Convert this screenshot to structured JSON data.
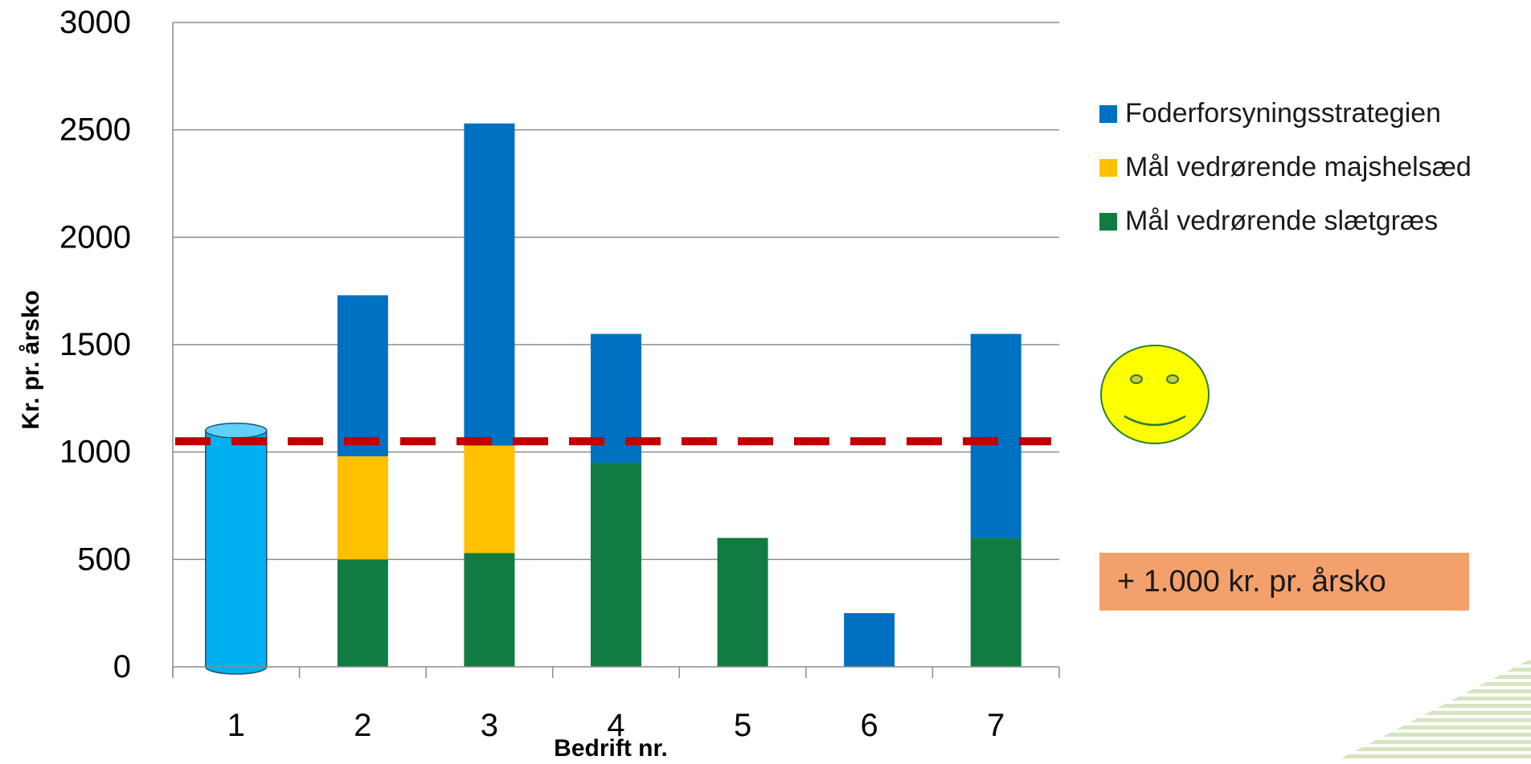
{
  "chart_data": {
    "type": "bar",
    "stacked": true,
    "xlabel": "Bedrift nr.",
    "ylabel": "Kr. pr. årsko",
    "ylim": [
      0,
      3000
    ],
    "yticks": [
      0,
      500,
      1000,
      1500,
      2000,
      2500,
      3000
    ],
    "categories": [
      "1",
      "2",
      "3",
      "4",
      "5",
      "6",
      "7"
    ],
    "series": [
      {
        "name": "Mål vedrørende slætgræs",
        "color": "#107c41",
        "values": [
          0,
          500,
          530,
          950,
          600,
          0,
          600
        ]
      },
      {
        "name": "Mål vedrørende majshelsæd",
        "color": "#ffc000",
        "values": [
          0,
          480,
          500,
          0,
          0,
          0,
          0
        ]
      },
      {
        "name": "Foderforsyningsstrategien",
        "color": "#0070c0",
        "values": [
          0,
          750,
          1500,
          600,
          0,
          250,
          950
        ]
      }
    ],
    "legend_order": [
      2,
      1,
      0
    ],
    "legend_position": "right",
    "cylinder": {
      "category": "1",
      "value": 1100,
      "color": "#00b0f0"
    },
    "reference_line": {
      "value": 1050,
      "color": "#c00000",
      "style": "dashed"
    },
    "grid": true
  },
  "annotation": {
    "text": "+ 1.000 kr. pr. årsko",
    "color": "#f4a06d"
  },
  "smiley": {
    "icon": "smiley-face-icon",
    "color": "#ffff00"
  }
}
